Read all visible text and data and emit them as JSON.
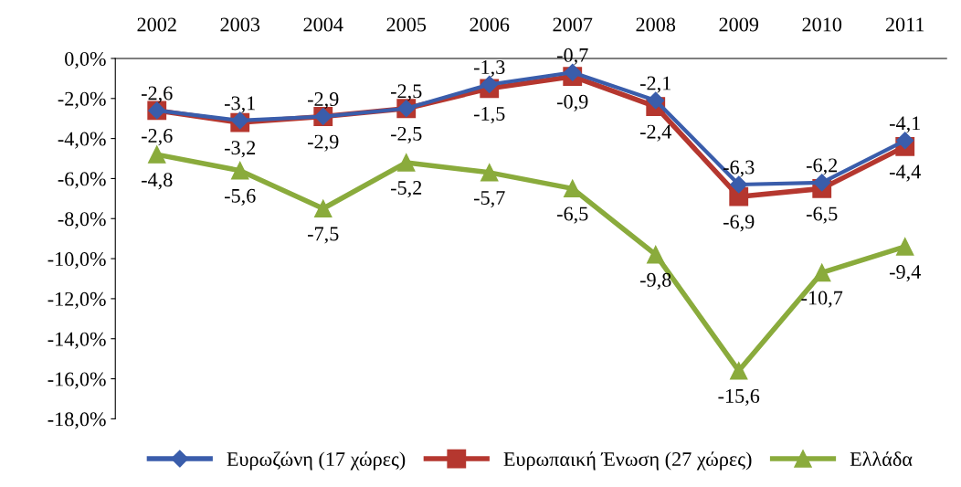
{
  "chart_data": {
    "type": "line",
    "categories": [
      "2002",
      "2003",
      "2004",
      "2005",
      "2006",
      "2007",
      "2008",
      "2009",
      "2010",
      "2011"
    ],
    "series": [
      {
        "name": "Ευρωζώνη (17 χώρες)",
        "color": "#3a5dab",
        "marker": "diamond",
        "values": [
          -2.6,
          -3.1,
          -2.9,
          -2.5,
          -1.3,
          -0.7,
          -2.1,
          -6.3,
          -6.2,
          -4.1
        ],
        "value_labels": [
          "-2,6",
          "-3,1",
          "-2,9",
          "-2,5",
          "-1,3",
          "-0,7",
          "-2,1",
          "-6,3",
          "-6,2",
          "-4,1"
        ]
      },
      {
        "name": "Ευρωπαική Ένωση (27 χώρες)",
        "color": "#b5372f",
        "marker": "square",
        "values": [
          -2.6,
          -3.2,
          -2.9,
          -2.5,
          -1.5,
          -0.9,
          -2.4,
          -6.9,
          -6.5,
          -4.4
        ],
        "value_labels": [
          "-2,6",
          "-3,2",
          "-2,9",
          "-2,5",
          "-1,5",
          "-0,9",
          "-2,4",
          "-6,9",
          "-6,5",
          "-4,4"
        ]
      },
      {
        "name": "Ελλάδα",
        "color": "#8aab3c",
        "marker": "triangle",
        "values": [
          -4.8,
          -5.6,
          -7.5,
          -5.2,
          -5.7,
          -6.5,
          -9.8,
          -15.6,
          -10.7,
          -9.4
        ],
        "value_labels": [
          "-4,8",
          "-5,6",
          "-7,5",
          "-5,2",
          "-5,7",
          "-6,5",
          "-9,8",
          "-15,6",
          "-10,7",
          "-9,4"
        ]
      }
    ],
    "ylim": [
      -18,
      0
    ],
    "yticks": [
      {
        "value": 0,
        "label": "0,0%"
      },
      {
        "value": -2,
        "label": "-2,0%"
      },
      {
        "value": -4,
        "label": "-4,0%"
      },
      {
        "value": -6,
        "label": "-6,0%"
      },
      {
        "value": -8,
        "label": "-8,0%"
      },
      {
        "value": -10,
        "label": "-10,0%"
      },
      {
        "value": -12,
        "label": "-12,0%"
      },
      {
        "value": -14,
        "label": "-14,0%"
      },
      {
        "value": -16,
        "label": "-16,0%"
      },
      {
        "value": -18,
        "label": "-18,0%"
      }
    ],
    "legend": "bottom",
    "grid": false,
    "line_style": "solid"
  }
}
